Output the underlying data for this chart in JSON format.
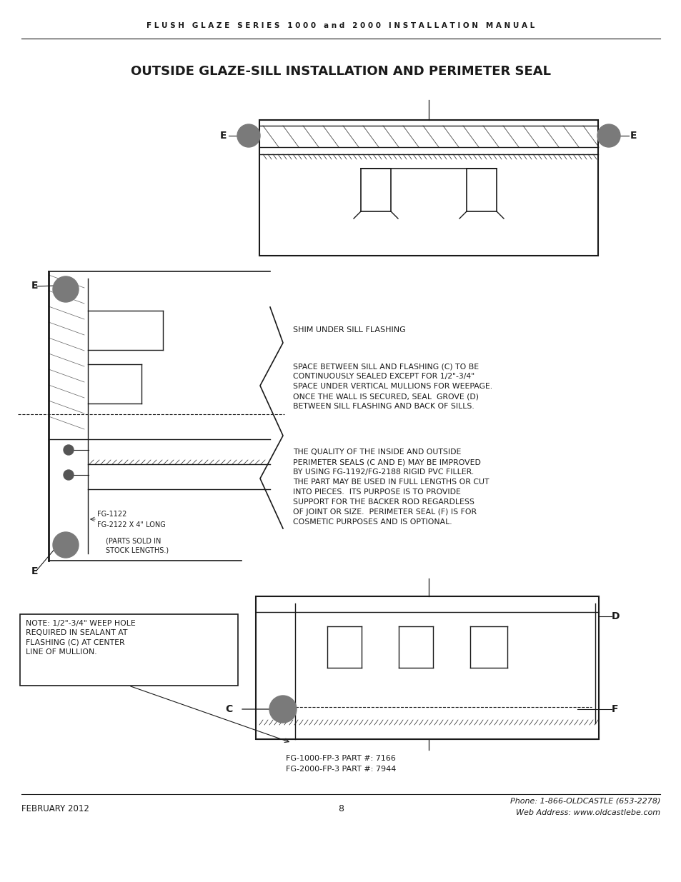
{
  "page_width": 9.54,
  "page_height": 12.35,
  "bg_color": "#ffffff",
  "header_text": "F L U S H   G L A Z E   S E R I E S   1 0 0 0   a n d   2 0 0 0   I N S T A L L A T I O N   M A N U A L",
  "title_text": "OUTSIDE GLAZE-SILL INSTALLATION AND PERIMETER SEAL",
  "footer_left": "FEBRUARY 2012",
  "footer_center": "8",
  "footer_right_line1": "Phone: 1-866-OLDCASTLE (653-2278)",
  "footer_right_line2": "Web Address: www.oldcastlebe.com",
  "note_box_text": "NOTE: 1/2\"-3/4\" WEEP HOLE\nREQUIRED IN SEALANT AT\nFLASHING (C) AT CENTER\nLINE OF MULLION.",
  "part_text_line1": "FG-1000-FP-3 PART #: 7166",
  "part_text_line2": "FG-2000-FP-3 PART #: 7944",
  "label_fg1": "FG-1122",
  "label_fg2": "FG-2122 X 4\" LONG",
  "label_parts": "(PARTS SOLD IN\nSTOCK LENGTHS.)",
  "annotation1_title": "SHIM UNDER SILL FLASHING",
  "annotation2": "SPACE BETWEEN SILL AND FLASHING (C) TO BE\nCONTINUOUSLY SEALED EXCEPT FOR 1/2\"-3/4\"\nSPACE UNDER VERTICAL MULLIONS FOR WEEPAGE.\nONCE THE WALL IS SECURED, SEAL  GROVE (D)\nBETWEEN SILL FLASHING AND BACK OF SILLS.",
  "annotation3": "THE QUALITY OF THE INSIDE AND OUTSIDE\nPERIMETER SEALS (C AND E) MAY BE IMPROVED\nBY USING FG-1192/FG-2188 RIGID PVC FILLER.\nTHE PART MAY BE USED IN FULL LENGTHS OR CUT\nINTO PIECES.  ITS PURPOSE IS TO PROVIDE\nSUPPORT FOR THE BACKER ROD REGARDLESS\nOF JOINT OR SIZE.  PERIMETER SEAL (F) IS FOR\nCOSMETIC PURPOSES AND IS OPTIONAL.",
  "text_color": "#1a1a1a",
  "line_color": "#1a1a1a",
  "gray_color": "#808080",
  "light_gray": "#cccccc"
}
